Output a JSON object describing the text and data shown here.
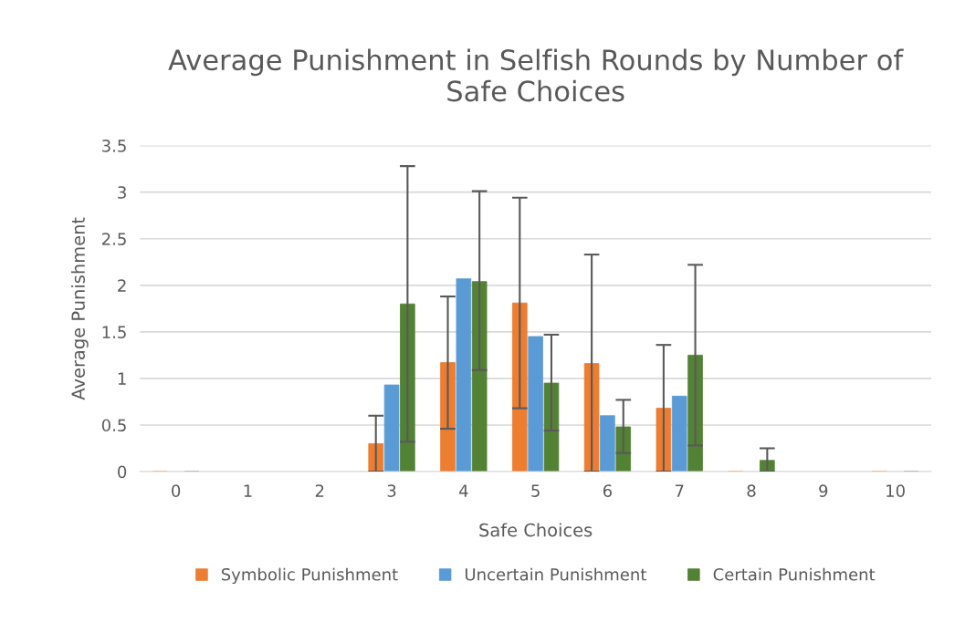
{
  "chart_data": {
    "type": "bar",
    "title": "Average Punishment in Selfish Rounds by Number of\nSafe Choices",
    "xlabel": "Safe Choices",
    "ylabel": "Average Punishment",
    "categories": [
      "0",
      "1",
      "2",
      "3",
      "4",
      "5",
      "6",
      "7",
      "8",
      "9",
      "10"
    ],
    "series": [
      {
        "name": "Symbolic Punishment",
        "color": "#ed7d31",
        "values": [
          0,
          null,
          null,
          0.3,
          1.17,
          1.81,
          1.16,
          0.68,
          0,
          null,
          0
        ],
        "errors": [
          null,
          null,
          null,
          [
            0,
            0.6
          ],
          [
            0.46,
            1.88
          ],
          [
            0.68,
            2.94
          ],
          [
            0,
            2.33
          ],
          [
            0,
            1.36
          ],
          null,
          null,
          null
        ]
      },
      {
        "name": "Uncertain Punishment",
        "color": "#5b9bd5",
        "values": [
          null,
          null,
          null,
          0.93,
          2.07,
          1.45,
          0.6,
          0.81,
          null,
          null,
          null
        ]
      },
      {
        "name": "Certain Punishment",
        "color": "#548235",
        "values": [
          0,
          null,
          null,
          1.8,
          2.04,
          0.95,
          0.48,
          1.25,
          0.12,
          null,
          0
        ],
        "errors": [
          null,
          null,
          null,
          [
            0.32,
            3.28
          ],
          [
            1.09,
            3.01
          ],
          [
            0.44,
            1.47
          ],
          [
            0.2,
            0.77
          ],
          [
            0.28,
            2.22
          ],
          [
            0,
            0.25
          ],
          null,
          null
        ]
      }
    ],
    "ylim": [
      0,
      3.5
    ],
    "yticks": [
      0,
      0.5,
      1,
      1.5,
      2,
      2.5,
      3,
      3.5
    ],
    "grid": "y",
    "legend": "bottom"
  }
}
